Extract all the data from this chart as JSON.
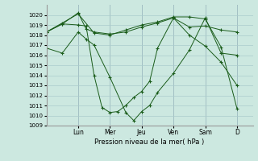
{
  "title": "",
  "xlabel": "Pression niveau de la mer( hPa )",
  "ylabel": "",
  "ylim": [
    1009,
    1021
  ],
  "yticks": [
    1009,
    1010,
    1011,
    1012,
    1013,
    1014,
    1015,
    1016,
    1017,
    1018,
    1019,
    1020
  ],
  "bg_color": "#cce8e0",
  "grid_color": "#aacccc",
  "line_color": "#1a5c1a",
  "day_labels": [
    "Lun",
    "Mer",
    "Jeu",
    "Ven",
    "Sam",
    "D"
  ],
  "day_positions": [
    2,
    4,
    6,
    8,
    10,
    12
  ],
  "xlim": [
    0,
    13
  ],
  "lines": [
    {
      "x": [
        0,
        1,
        2,
        2.5,
        3,
        4,
        5,
        5.5,
        6,
        6.5,
        7,
        8,
        9,
        10,
        11,
        12
      ],
      "y": [
        1016.7,
        1016.2,
        1018.3,
        1017.6,
        1017.0,
        1013.8,
        1010.3,
        1009.5,
        1010.4,
        1011.0,
        1012.3,
        1014.2,
        1016.5,
        1019.7,
        1016.2,
        1016.0
      ]
    },
    {
      "x": [
        0,
        1,
        2,
        2.5,
        3,
        4,
        5,
        6,
        7,
        8,
        9,
        10,
        11,
        12
      ],
      "y": [
        1018.3,
        1019.1,
        1020.2,
        1018.6,
        1018.3,
        1018.1,
        1018.3,
        1018.8,
        1019.2,
        1019.7,
        1018.8,
        1018.9,
        1018.5,
        1018.3
      ]
    },
    {
      "x": [
        0,
        1,
        2,
        3,
        4,
        5,
        6,
        7,
        8,
        9,
        10,
        11,
        12
      ],
      "y": [
        1018.3,
        1019.2,
        1020.1,
        1018.2,
        1018.0,
        1018.5,
        1019.0,
        1019.3,
        1019.8,
        1019.8,
        1019.6,
        1016.8,
        1010.7
      ]
    },
    {
      "x": [
        0,
        1,
        2,
        2.5,
        3,
        3.5,
        4,
        4.5,
        5,
        5.5,
        6,
        6.5,
        7,
        8,
        9,
        10,
        11,
        12
      ],
      "y": [
        1018.3,
        1019.1,
        1019.0,
        1018.9,
        1014.0,
        1010.8,
        1010.3,
        1010.4,
        1011.0,
        1011.8,
        1012.4,
        1013.4,
        1016.7,
        1019.7,
        1018.0,
        1016.9,
        1015.3,
        1013.0
      ]
    }
  ]
}
